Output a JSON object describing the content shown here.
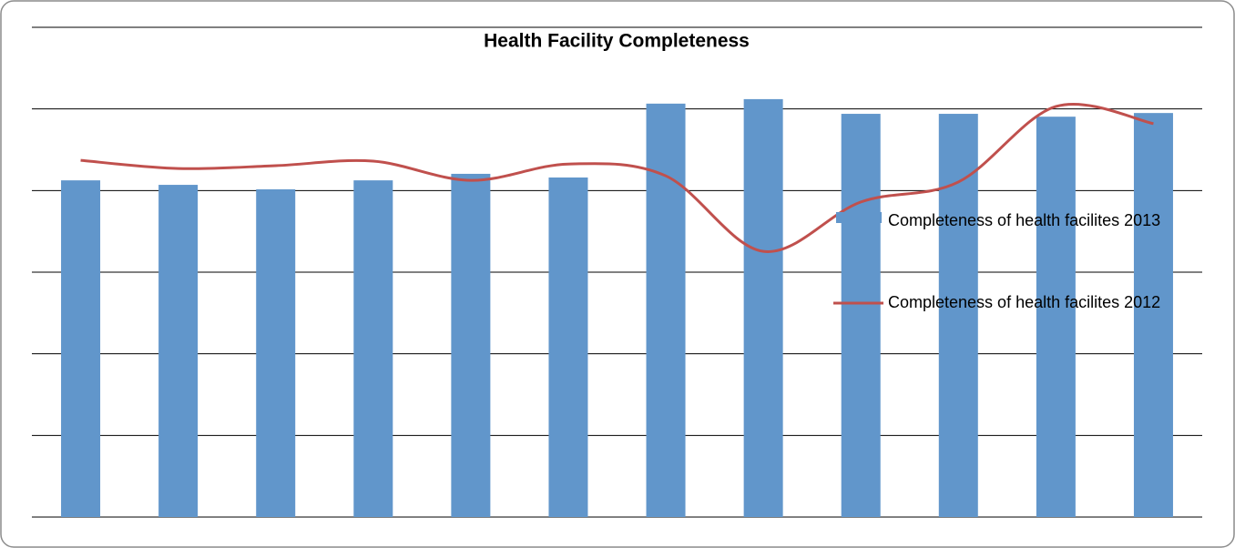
{
  "chart_data": {
    "type": "bar-line",
    "title": "Health Facility Completeness",
    "categories": [
      null,
      null,
      null,
      null,
      null,
      null,
      null,
      null,
      null,
      null,
      null,
      null
    ],
    "series": [
      {
        "name": "Completeness of health facilites 2013",
        "type": "bar",
        "color": "#6196cb",
        "values": [
          82.5,
          81.4,
          80.3,
          82.5,
          84.1,
          83.2,
          101.3,
          102.4,
          98.8,
          98.8,
          98.1,
          99.0
        ]
      },
      {
        "name": "Completeness of health facilites 2012",
        "type": "line",
        "color": "#c0504d",
        "values": [
          87.4,
          85.4,
          86.1,
          87.2,
          82.5,
          86.5,
          83.6,
          65.1,
          77.2,
          82.1,
          100.6,
          96.4
        ]
      }
    ],
    "ylim": [
      0,
      120
    ],
    "yticks": [
      0,
      20,
      40,
      60,
      80,
      100,
      120
    ],
    "grid": true,
    "legend": "right"
  }
}
